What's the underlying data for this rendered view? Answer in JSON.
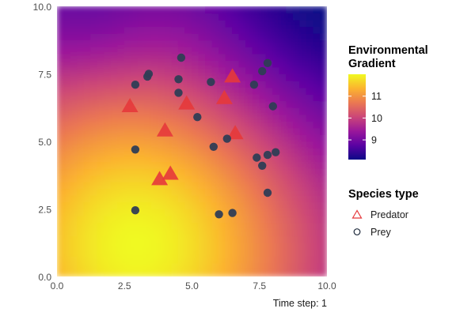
{
  "chart_data": {
    "type": "scatter",
    "caption": "Time step: 1",
    "xlim": [
      0,
      10
    ],
    "ylim": [
      0,
      10
    ],
    "x_ticks": [
      "0.0",
      "2.5",
      "5.0",
      "7.5",
      "10.0"
    ],
    "y_ticks": [
      "0.0",
      "2.5",
      "5.0",
      "7.5",
      "10.0"
    ],
    "grid": false,
    "background": {
      "type": "heatmap",
      "palette": "plasma",
      "colors": [
        "#0d0887",
        "#5b02a3",
        "#9a179b",
        "#cb4678",
        "#eb7852",
        "#fbb32f",
        "#f0f921"
      ],
      "range": [
        8.1,
        12.0
      ]
    },
    "colorbar": {
      "title_lines": [
        "Environmental",
        "Gradient"
      ],
      "ticks": [
        "11",
        "10",
        "9"
      ],
      "tick_values": [
        11,
        10,
        9
      ],
      "range": [
        8.1,
        12.0
      ],
      "placement": "right"
    },
    "legend": {
      "title": "Species type",
      "placement": "right",
      "entries": [
        {
          "label": "Predator",
          "shape": "triangle",
          "color": "#e5383b"
        },
        {
          "label": "Prey",
          "shape": "circle",
          "color": "#2f3d55"
        }
      ]
    },
    "series": [
      {
        "name": "Predator",
        "marker": "triangle",
        "color": "#e5383b",
        "points": [
          [
            2.7,
            6.3
          ],
          [
            4.0,
            5.4
          ],
          [
            3.8,
            3.6
          ],
          [
            4.2,
            3.8
          ],
          [
            4.8,
            6.4
          ],
          [
            6.2,
            6.6
          ],
          [
            6.5,
            7.4
          ],
          [
            6.6,
            5.3
          ]
        ]
      },
      {
        "name": "Prey",
        "marker": "circle",
        "color": "#2f3d55",
        "points": [
          [
            2.9,
            7.1
          ],
          [
            3.4,
            7.5
          ],
          [
            3.35,
            7.4
          ],
          [
            4.6,
            8.1
          ],
          [
            4.5,
            7.3
          ],
          [
            4.5,
            6.8
          ],
          [
            5.2,
            5.9
          ],
          [
            5.7,
            7.2
          ],
          [
            5.8,
            4.8
          ],
          [
            6.3,
            5.1
          ],
          [
            7.3,
            7.1
          ],
          [
            7.6,
            7.6
          ],
          [
            7.8,
            7.9
          ],
          [
            8.0,
            6.3
          ],
          [
            7.4,
            4.4
          ],
          [
            7.6,
            4.1
          ],
          [
            7.8,
            4.5
          ],
          [
            8.1,
            4.6
          ],
          [
            7.8,
            3.1
          ],
          [
            2.9,
            4.7
          ],
          [
            2.9,
            2.45
          ],
          [
            6.0,
            2.3
          ],
          [
            6.5,
            2.35
          ]
        ]
      }
    ]
  }
}
